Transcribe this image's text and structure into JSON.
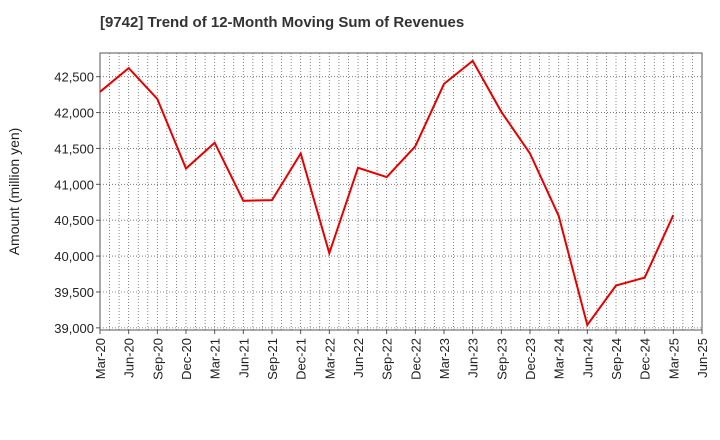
{
  "chart_data": {
    "type": "line",
    "title": "[9742]  Trend of 12-Month Moving Sum of Revenues",
    "xlabel": "",
    "ylabel": "Amount (million yen)",
    "x_tick_labels": [
      "Mar-20",
      "Jun-20",
      "Sep-20",
      "Dec-20",
      "Mar-21",
      "Jun-21",
      "Sep-21",
      "Dec-21",
      "Mar-22",
      "Jun-22",
      "Sep-22",
      "Dec-22",
      "Mar-23",
      "Jun-23",
      "Sep-23",
      "Dec-23",
      "Mar-24",
      "Jun-24",
      "Sep-24",
      "Dec-24",
      "Mar-25",
      "Jun-25"
    ],
    "y_tick_labels": [
      "39,000",
      "39,500",
      "40,000",
      "40,500",
      "41,000",
      "41,500",
      "42,000",
      "42,500"
    ],
    "y_ticks": [
      39000,
      39500,
      40000,
      40500,
      41000,
      41500,
      42000,
      42500
    ],
    "ylim": [
      38970,
      42830
    ],
    "grid": true,
    "legend": "none",
    "line_color": "#e60000",
    "series": [
      {
        "x": [
          "Mar-20",
          "Jun-20",
          "Sep-20",
          "Dec-20",
          "Mar-21",
          "Jun-21",
          "Sep-21",
          "Dec-21",
          "Mar-22",
          "Jun-22",
          "Sep-22",
          "Dec-22",
          "Mar-23",
          "Jun-23",
          "Sep-23",
          "Dec-23",
          "Mar-24",
          "Jun-24",
          "Sep-24",
          "Dec-24",
          "Mar-25"
        ],
        "values": [
          42290,
          42620,
          42190,
          41220,
          41580,
          40770,
          40780,
          41430,
          40040,
          41230,
          41100,
          41530,
          42400,
          42720,
          42010,
          41430,
          40560,
          39040,
          39590,
          39700,
          40570
        ]
      }
    ]
  }
}
